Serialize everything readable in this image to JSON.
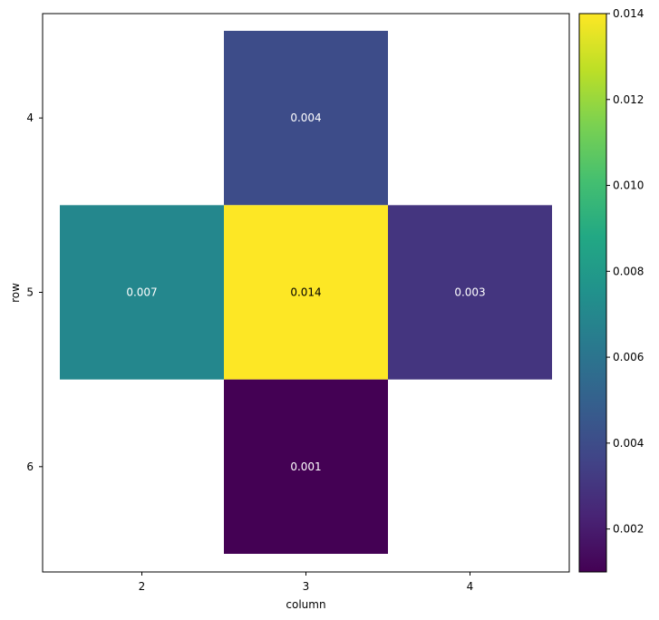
{
  "chart_data": {
    "type": "heatmap",
    "xlabel": "column",
    "ylabel": "row",
    "x_categories": [
      "2",
      "3",
      "4"
    ],
    "y_categories": [
      "4",
      "5",
      "6"
    ],
    "cells": [
      {
        "row": "4",
        "column": "3",
        "value": 0.004,
        "label": "0.004"
      },
      {
        "row": "5",
        "column": "2",
        "value": 0.007,
        "label": "0.007"
      },
      {
        "row": "5",
        "column": "3",
        "value": 0.014,
        "label": "0.014"
      },
      {
        "row": "5",
        "column": "4",
        "value": 0.003,
        "label": "0.003"
      },
      {
        "row": "6",
        "column": "3",
        "value": 0.001,
        "label": "0.001"
      }
    ],
    "colorbar": {
      "colormap": "viridis",
      "range": [
        0.001,
        0.014
      ],
      "ticks": [
        0.002,
        0.004,
        0.006,
        0.008,
        0.01,
        0.012,
        0.014
      ],
      "tick_labels": [
        "0.002",
        "0.004",
        "0.006",
        "0.008",
        "0.010",
        "0.012",
        "0.014"
      ]
    },
    "grid": false,
    "missing_cells": "blank"
  }
}
